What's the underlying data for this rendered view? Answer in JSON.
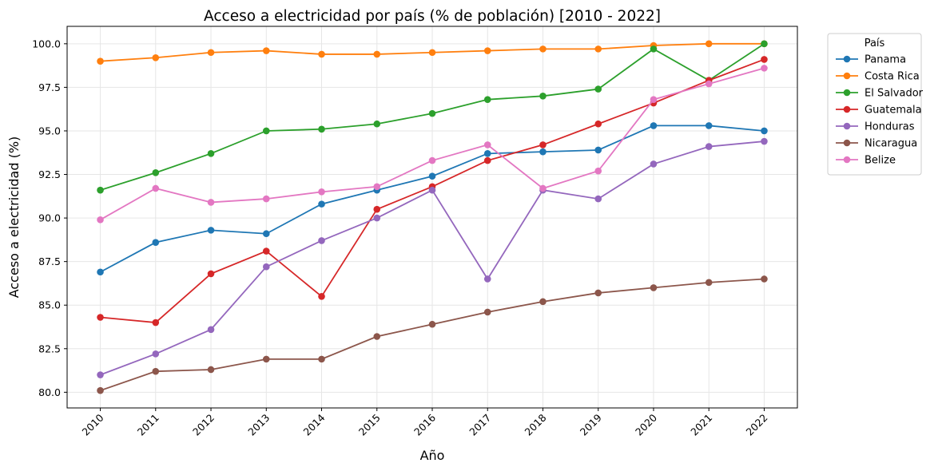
{
  "chart_data": {
    "type": "line",
    "title": "Acceso a electricidad por país (% de población) [2010 - 2022]",
    "xlabel": "Año",
    "ylabel": "Acceso a electricidad (%)",
    "x": [
      2010,
      2011,
      2012,
      2013,
      2014,
      2015,
      2016,
      2017,
      2018,
      2019,
      2020,
      2021,
      2022
    ],
    "x_tick_labels": [
      "2010",
      "2011",
      "2012",
      "2013",
      "2014",
      "2015",
      "2016",
      "2017",
      "2018",
      "2019",
      "2020",
      "2021",
      "2022"
    ],
    "y_ticks": [
      80.0,
      82.5,
      85.0,
      87.5,
      90.0,
      92.5,
      95.0,
      97.5,
      100.0
    ],
    "y_tick_labels": [
      "80.0",
      "82.5",
      "85.0",
      "87.5",
      "90.0",
      "92.5",
      "95.0",
      "97.5",
      "100.0"
    ],
    "ylim": [
      79.1,
      101.0
    ],
    "grid": true,
    "legend_title": "País",
    "legend_position": "outside-right-top",
    "series": [
      {
        "name": "Panama",
        "color": "#1f77b4",
        "values": [
          86.9,
          88.6,
          89.3,
          89.1,
          90.8,
          91.6,
          92.4,
          93.7,
          93.8,
          93.9,
          95.3,
          95.3,
          95.0
        ]
      },
      {
        "name": "Costa Rica",
        "color": "#ff7f0e",
        "values": [
          99.0,
          99.2,
          99.5,
          99.6,
          99.4,
          99.4,
          99.5,
          99.6,
          99.7,
          99.7,
          99.9,
          100.0,
          100.0
        ]
      },
      {
        "name": "El Salvador",
        "color": "#2ca02c",
        "values": [
          91.6,
          92.6,
          93.7,
          95.0,
          95.1,
          95.4,
          96.0,
          96.8,
          97.0,
          97.4,
          99.7,
          97.9,
          100.0
        ]
      },
      {
        "name": "Guatemala",
        "color": "#d62728",
        "values": [
          84.3,
          84.0,
          86.8,
          88.1,
          85.5,
          90.5,
          91.8,
          93.3,
          94.2,
          95.4,
          96.6,
          97.9,
          99.1
        ]
      },
      {
        "name": "Honduras",
        "color": "#9467bd",
        "values": [
          81.0,
          82.2,
          83.6,
          87.2,
          88.7,
          90.0,
          91.6,
          86.5,
          91.6,
          91.1,
          93.1,
          94.1,
          94.4
        ]
      },
      {
        "name": "Nicaragua",
        "color": "#8c564b",
        "values": [
          80.1,
          81.2,
          81.3,
          81.9,
          81.9,
          83.2,
          83.9,
          84.6,
          85.2,
          85.7,
          86.0,
          86.3,
          86.5
        ]
      },
      {
        "name": "Belize",
        "color": "#e377c2",
        "values": [
          89.9,
          91.7,
          90.9,
          91.1,
          91.5,
          91.8,
          93.3,
          94.2,
          91.7,
          92.7,
          96.8,
          97.7,
          98.6
        ]
      }
    ]
  }
}
